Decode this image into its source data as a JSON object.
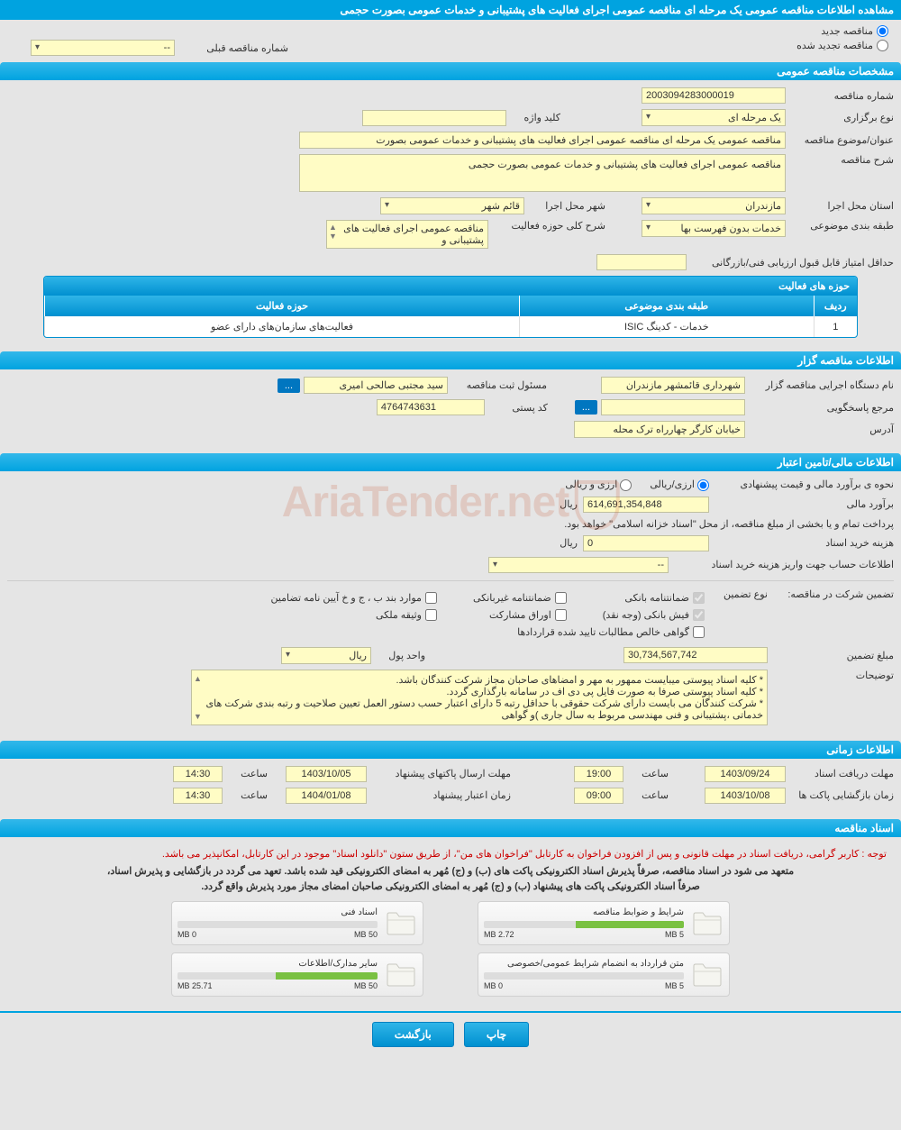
{
  "page_title": "مشاهده اطلاعات مناقصه عمومی یک مرحله ای مناقصه عمومی اجرای فعالیت های پشتیبانی و خدمات عمومی بصورت حجمی",
  "tender_type": {
    "new_label": "مناقصه جدید",
    "renewed_label": "مناقصه تجدید شده",
    "prev_number_label": "شماره مناقصه قبلی",
    "prev_number_value": "--"
  },
  "sections": {
    "general": "مشخصات مناقصه عمومی",
    "organizer": "اطلاعات مناقصه گزار",
    "financial": "اطلاعات مالی/تامین اعتبار",
    "timing": "اطلاعات زمانی",
    "documents": "اسناد مناقصه"
  },
  "general": {
    "tender_no_label": "شماره مناقصه",
    "tender_no": "2003094283000019",
    "holding_type_label": "نوع برگزاری",
    "holding_type": "یک مرحله ای",
    "keyword_label": "کلید واژه",
    "keyword": "",
    "subject_label": "عنوان/موضوع مناقصه",
    "subject": "مناقصه عمومی یک مرحله ای مناقصه عمومی اجرای فعالیت های پشتیبانی و خدمات عمومی بصورت",
    "desc_label": "شرح مناقصه",
    "desc": "مناقصه عمومی اجرای فعالیت های پشتیبانی و خدمات عمومی بصورت حجمی",
    "province_label": "استان محل اجرا",
    "province": "مازندران",
    "city_label": "شهر محل اجرا",
    "city": "قائم شهر",
    "category_label": "طبقه بندی موضوعی",
    "category": "خدمات بدون فهرست بها",
    "activity_scope_label": "شرح کلی حوزه فعالیت",
    "activity_scope": "مناقصه عمومی اجرای فعالیت های پشتیبانی و",
    "min_score_label": "حداقل امتیاز قابل قبول ارزیابی فنی/بازرگانی",
    "min_score": "",
    "activity_table": {
      "title": "حوزه های فعالیت",
      "headers": {
        "row": "ردیف",
        "category": "طبقه بندی موضوعی",
        "scope": "حوزه فعالیت"
      },
      "rows": [
        {
          "row": "1",
          "category": "خدمات - کدینگ ISIC",
          "scope": "فعالیت‌های سازمان‌های دارای عضو"
        }
      ]
    }
  },
  "organizer": {
    "exec_name_label": "نام دستگاه اجرایی مناقصه گزار",
    "exec_name": "شهرداری قائمشهر مازندران",
    "registrar_label": "مسئول ثبت مناقصه",
    "registrar": "سید مجتبی صالحی امیری",
    "reference_label": "مرجع پاسخگویی",
    "reference": "",
    "postal_label": "کد پستی",
    "postal": "4764743631",
    "address_label": "آدرس",
    "address": "خیابان کارگر چهارراه ترک محله",
    "more_btn": "..."
  },
  "financial": {
    "estimate_method_label": "نحوه ی برآورد مالی و قیمت پیشنهادی",
    "opt1": "ارزی/ریالی",
    "opt2": "ارزی و ریالی",
    "estimate_label": "برآورد مالی",
    "estimate": "614,691,354,848",
    "unit": "ریال",
    "treasury_note": "پرداخت تمام و یا بخشی از مبلغ مناقصه، از محل \"اسناد خزانه اسلامی\" خواهد بود.",
    "doc_cost_label": "هزینه خرید اسناد",
    "doc_cost": "0",
    "account_label": "اطلاعات حساب جهت واریز هزینه خرید اسناد",
    "account_value": "--",
    "guarantee_label": "تضمین شرکت در مناقصه:",
    "guarantee_type_label": "نوع تضمین",
    "guarantees": {
      "bank_guarantee": "ضمانتنامه بانکی",
      "nonbank_guarantee": "ضمانتنامه غیربانکی",
      "items_b": "موارد بند ب ، ج و خ آیین نامه تضامین",
      "bank_receipt": "فیش بانکی (وجه نقد)",
      "participation_bonds": "اوراق مشارکت",
      "property_pledge": "وثیقه ملکی",
      "net_receivables": "گواهی خالص مطالبات تایید شده قراردادها"
    },
    "guarantee_amount_label": "مبلغ تضمین",
    "guarantee_amount": "30,734,567,742",
    "currency_unit_label": "واحد پول",
    "currency_unit": "ریال",
    "notes_label": "توضیحات",
    "notes": "* کلیه اسناد پیوستی میبایست ممهور به مهر و امضاهای صاحبان مجاز شرکت کنندگان باشد.\n* کلیه اسناد پیوستی صرفا به صورت فایل پی دی اف در سامانه بارگذاری گردد.\n* شرکت کنندگان می بایست دارای شرکت حقوقی با حداقل رتبه 5 دارای اعتبار حسب دستور العمل تعیین صلاحیت و رتبه بندی شرکت های خدماتی ،پشتیبانی و فنی مهندسی مربوط به سال جاری )و گواهی"
  },
  "timing": {
    "doc_receive_label": "مهلت دریافت اسناد",
    "doc_receive_date": "1403/09/24",
    "doc_receive_time_label": "ساعت",
    "doc_receive_time": "19:00",
    "proposal_send_label": "مهلت ارسال پاکتهای پیشنهاد",
    "proposal_send_date": "1403/10/05",
    "proposal_send_time": "14:30",
    "opening_label": "زمان بازگشایی پاکت ها",
    "opening_date": "1403/10/08",
    "opening_time": "09:00",
    "validity_label": "زمان اعتبار پیشنهاد",
    "validity_date": "1404/01/08",
    "validity_time": "14:30"
  },
  "documents": {
    "notice": "توجه : کاربر گرامی، دریافت اسناد در مهلت قانونی و پس از افزودن فراخوان به کارتابل \"فراخوان های من\"، از طریق ستون \"دانلود اسناد\" موجود در این کارتابل، امکانپذیر می باشد.",
    "commitment1": "متعهد می شود در اسناد مناقصه، صرفاً پذیرش اسناد الکترونیکی پاکت های (ب) و (ج) مُهر به امضای الکترونیکی قید شده باشد. تعهد می گردد در بازگشایی و پذیرش اسناد،",
    "commitment2": "صرفاً اسناد الکترونیکی پاکت های پیشنهاد (ب) و (ج) مُهر به امضای الکترونیکی صاحبان امضای مجاز مورد پذیرش واقع گردد.",
    "files": [
      {
        "title": "شرایط و ضوابط مناقصه",
        "used": "2.72 MB",
        "total": "5 MB",
        "pct": 54
      },
      {
        "title": "اسناد فنی",
        "used": "0 MB",
        "total": "50 MB",
        "pct": 0
      },
      {
        "title": "متن قرارداد به انضمام شرایط عمومی/خصوصی",
        "used": "0 MB",
        "total": "5 MB",
        "pct": 0
      },
      {
        "title": "سایر مدارک/اطلاعات",
        "used": "25.71 MB",
        "total": "50 MB",
        "pct": 51
      }
    ]
  },
  "buttons": {
    "print": "چاپ",
    "back": "بازگشت"
  },
  "colors": {
    "header_bg": "#00a3e0",
    "field_bg": "#fffcc5",
    "btn_bg": "#0090d0",
    "progress_fill": "#7ac142"
  },
  "watermark": "AriaTender.net"
}
